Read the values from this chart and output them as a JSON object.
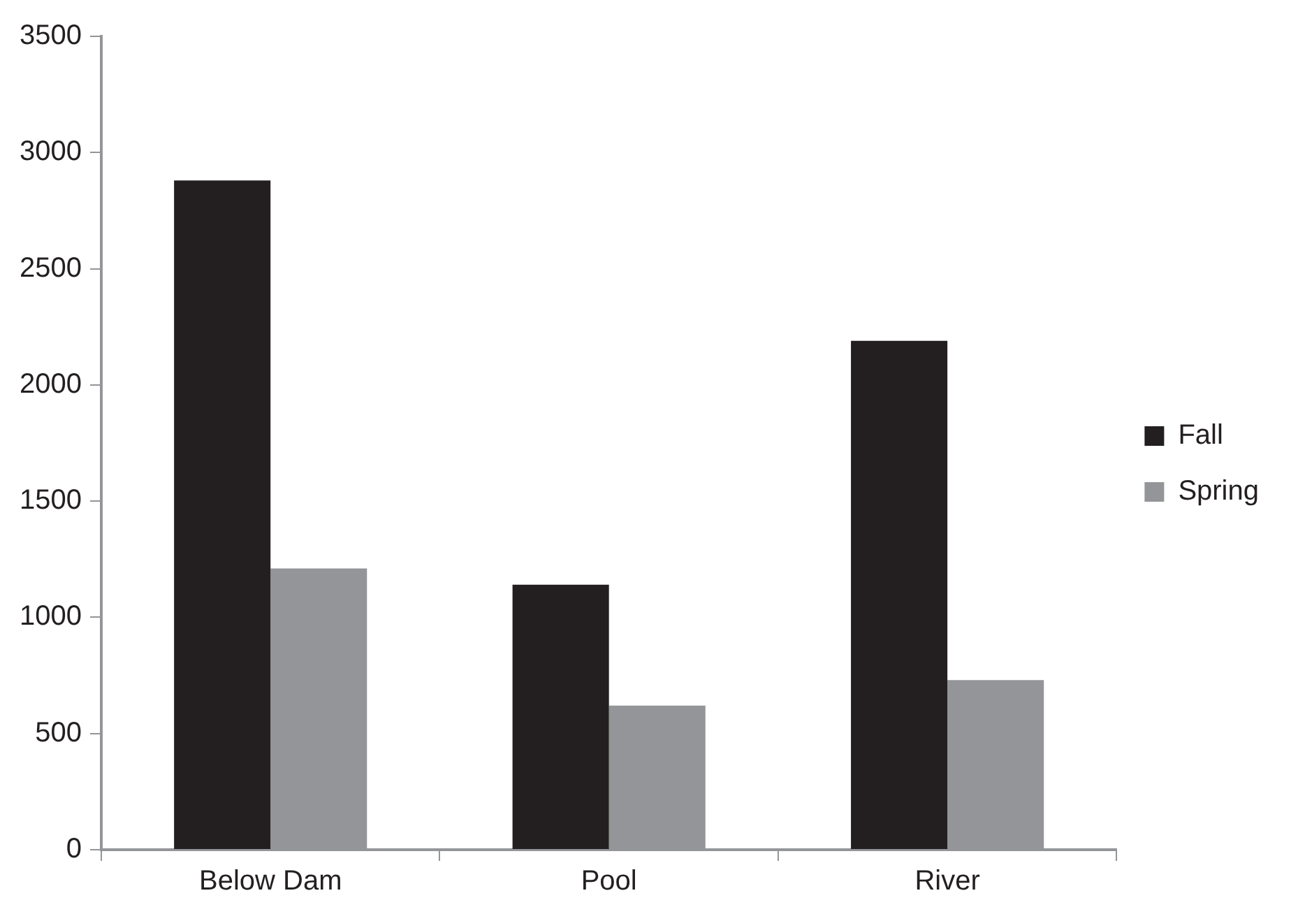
{
  "chart_data": {
    "type": "bar",
    "categories": [
      "Below Dam",
      "Pool",
      "River"
    ],
    "series": [
      {
        "name": "Fall",
        "color": "#231f20",
        "values": [
          2880,
          1140,
          2190
        ]
      },
      {
        "name": "Spring",
        "color": "#939598",
        "values": [
          1210,
          620,
          730
        ]
      }
    ],
    "ylim": [
      0,
      3500
    ],
    "yticks": [
      0,
      500,
      1000,
      1500,
      2000,
      2500,
      3000,
      3500
    ],
    "grid": false,
    "legend": "right"
  }
}
